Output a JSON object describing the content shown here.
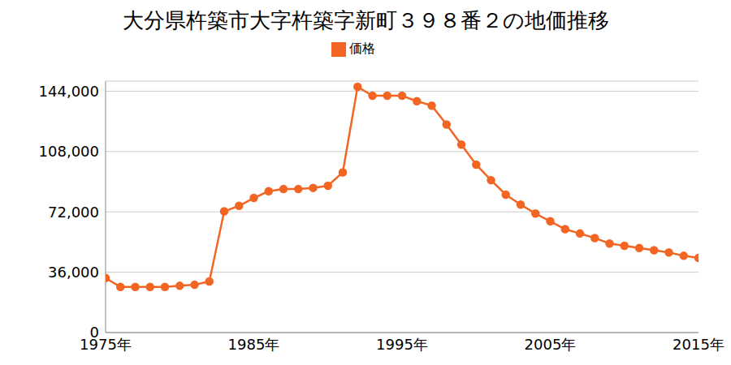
{
  "chart_data": {
    "type": "line",
    "title": "大分県杵築市大字杵築字新町３９８番２の地価推移",
    "x": [
      1975,
      1976,
      1977,
      1978,
      1979,
      1980,
      1981,
      1982,
      1983,
      1984,
      1985,
      1986,
      1987,
      1988,
      1989,
      1990,
      1991,
      1992,
      1993,
      1994,
      1995,
      1996,
      1997,
      1998,
      1999,
      2000,
      2001,
      2002,
      2003,
      2004,
      2005,
      2006,
      2007,
      2008,
      2009,
      2010,
      2011,
      2012,
      2013,
      2014,
      2015
    ],
    "series": [
      {
        "name": "価格",
        "color": "#f26522",
        "marker": "circle",
        "values": [
          32500,
          27200,
          27200,
          27200,
          27200,
          27900,
          28500,
          30500,
          72300,
          75600,
          80300,
          84300,
          85600,
          85600,
          86300,
          87600,
          95600,
          146600,
          141300,
          141300,
          141300,
          138000,
          135400,
          124100,
          112100,
          100200,
          90900,
          82300,
          76300,
          71000,
          66400,
          61700,
          59100,
          56400,
          53100,
          51800,
          50400,
          49100,
          47800,
          45800,
          44500
        ]
      }
    ],
    "xlim": [
      1975,
      2015
    ],
    "xticks": [
      {
        "value": 1975,
        "label": "1975年"
      },
      {
        "value": 1985,
        "label": "1985年"
      },
      {
        "value": 1995,
        "label": "1995年"
      },
      {
        "value": 2005,
        "label": "2005年"
      },
      {
        "value": 2015,
        "label": "2015年"
      }
    ],
    "ylim": [
      0,
      150000
    ],
    "yticks": [
      0,
      {
        "value": 36000,
        "label": "36,000"
      },
      {
        "value": 72000,
        "label": "72,000"
      },
      {
        "value": 108000,
        "label": "108,000"
      },
      {
        "value": 144000,
        "label": "144,000"
      }
    ],
    "grid": true,
    "legend": "top"
  }
}
